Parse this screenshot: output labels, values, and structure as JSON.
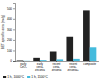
{
  "chart_data": {
    "type": "bar",
    "categories": [
      "early\nCeO₂",
      "early\nceria-\nzirconia",
      "recent\nceria-\nzirconia",
      "recent\nceria-\nzirconia+",
      "composite"
    ],
    "series": [
      {
        "name": "1 h, 1000°C",
        "color": "#222222",
        "values": [
          5,
          30,
          90,
          230,
          480
        ]
      },
      {
        "name": "1 h, 1100°C",
        "color": "#44bbdd",
        "values": [
          2,
          8,
          15,
          20,
          130
        ]
      }
    ],
    "ylabel": "BET specific area (m²/g)",
    "ylim": [
      0,
      550
    ],
    "yticks": [
      0,
      100,
      200,
      300,
      400,
      500
    ],
    "legend": "bottom"
  }
}
